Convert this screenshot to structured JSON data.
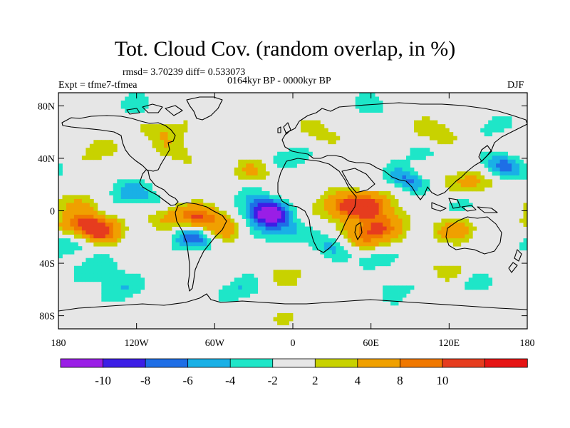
{
  "header": {
    "title": "Tot. Cloud Cov. (random overlap, in %)",
    "stats": "rmsd= 3.70239 diff= 0.533073",
    "period": "0164kyr BP - 0000kyr BP",
    "experiment": "Expt = tfme7-tfmea",
    "season": "DJF"
  },
  "map": {
    "lat_ticks": [
      "80N",
      "40N",
      "0",
      "40S",
      "80S"
    ],
    "lon_ticks": [
      "180",
      "120W",
      "60W",
      "0",
      "60E",
      "120E",
      "180"
    ]
  },
  "colorbar": {
    "colors": [
      "#9a1ee6",
      "#3c1ee6",
      "#1e6ee6",
      "#19b0e6",
      "#1ee6c8",
      "#e6e6e6",
      "#c8d200",
      "#f0a000",
      "#f07800",
      "#e63c1e",
      "#e61414"
    ],
    "labels": [
      "-10",
      "-8",
      "-6",
      "-4",
      "-2",
      "2",
      "4",
      "8",
      "10"
    ]
  },
  "chart_data": {
    "type": "heatmap",
    "title": "Tot. Cloud Cov. (random overlap, in %)",
    "subtitle": "0164kyr BP - 0000kyr BP",
    "x_range": [
      -180,
      180
    ],
    "y_range": [
      -90,
      90
    ],
    "levels": [
      -10,
      -8,
      -6,
      -4,
      -2,
      2,
      4,
      8,
      10
    ],
    "features": [
      {
        "lon": -150,
        "lat": -15,
        "value": 12
      },
      {
        "lon": -165,
        "lat": -10,
        "value": 6
      },
      {
        "lon": -165,
        "lat": 5,
        "value": 4
      },
      {
        "lon": -170,
        "lat": -25,
        "value": -5
      },
      {
        "lon": -150,
        "lat": -45,
        "value": -4
      },
      {
        "lon": -130,
        "lat": 15,
        "value": -4
      },
      {
        "lon": -110,
        "lat": 10,
        "value": -3
      },
      {
        "lon": -95,
        "lat": -5,
        "value": 5
      },
      {
        "lon": -70,
        "lat": -5,
        "value": 9
      },
      {
        "lon": -75,
        "lat": -20,
        "value": -9
      },
      {
        "lon": -55,
        "lat": -15,
        "value": 6
      },
      {
        "lon": -20,
        "lat": -2,
        "value": -11
      },
      {
        "lon": -10,
        "lat": -15,
        "value": -5
      },
      {
        "lon": -30,
        "lat": 10,
        "value": -3
      },
      {
        "lon": 40,
        "lat": 3,
        "value": 10
      },
      {
        "lon": 60,
        "lat": 5,
        "value": 9
      },
      {
        "lon": 55,
        "lat": -20,
        "value": 10
      },
      {
        "lon": 70,
        "lat": -10,
        "value": 7
      },
      {
        "lon": 30,
        "lat": -25,
        "value": -5
      },
      {
        "lon": 60,
        "lat": -35,
        "value": -4
      },
      {
        "lon": 90,
        "lat": 25,
        "value": -9
      },
      {
        "lon": 100,
        "lat": 30,
        "value": 6
      },
      {
        "lon": 140,
        "lat": 22,
        "value": 6
      },
      {
        "lon": 155,
        "lat": 35,
        "value": -5
      },
      {
        "lon": 125,
        "lat": -15,
        "value": 6
      },
      {
        "lon": 135,
        "lat": 5,
        "value": -3
      },
      {
        "lon": 100,
        "lat": 40,
        "value": -4
      },
      {
        "lon": 0,
        "lat": 40,
        "value": -4
      },
      {
        "lon": -30,
        "lat": 30,
        "value": 4
      },
      {
        "lon": -90,
        "lat": 45,
        "value": 3
      },
      {
        "lon": -150,
        "lat": 45,
        "value": 3
      },
      {
        "lon": 20,
        "lat": 60,
        "value": 3
      },
      {
        "lon": 110,
        "lat": 60,
        "value": 4
      },
      {
        "lon": -100,
        "lat": 62,
        "value": 4
      },
      {
        "lon": -120,
        "lat": 80,
        "value": -3
      },
      {
        "lon": 60,
        "lat": 80,
        "value": -3
      },
      {
        "lon": 150,
        "lat": 65,
        "value": -3
      },
      {
        "lon": 170,
        "lat": 30,
        "value": -3
      },
      {
        "lon": -130,
        "lat": -60,
        "value": -4
      },
      {
        "lon": -40,
        "lat": -60,
        "value": -4
      },
      {
        "lon": 80,
        "lat": -60,
        "value": -3
      },
      {
        "lon": 140,
        "lat": -55,
        "value": -3
      },
      {
        "lon": 0,
        "lat": -50,
        "value": 3
      },
      {
        "lon": 120,
        "lat": -45,
        "value": 3
      },
      {
        "lon": 0,
        "lat": -80,
        "value": 2
      }
    ]
  }
}
